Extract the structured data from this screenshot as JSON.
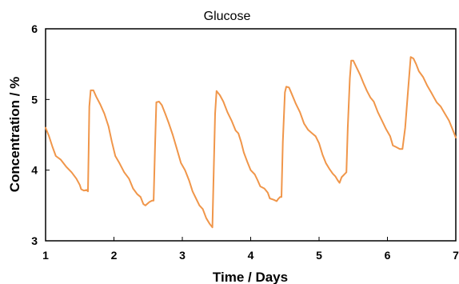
{
  "chart_data": {
    "type": "line",
    "title": "Glucose",
    "xlabel": "Time / Days",
    "ylabel": "Concentration / %",
    "xlim": [
      1,
      7
    ],
    "ylim": [
      3,
      6
    ],
    "xticks": [
      1,
      2,
      3,
      4,
      5,
      6,
      7
    ],
    "yticks": [
      3,
      4,
      5,
      6
    ],
    "grid": false,
    "series": [
      {
        "color": "#f0964a",
        "points": [
          [
            1.0,
            4.6
          ],
          [
            1.05,
            4.48
          ],
          [
            1.1,
            4.33
          ],
          [
            1.15,
            4.2
          ],
          [
            1.22,
            4.15
          ],
          [
            1.3,
            4.05
          ],
          [
            1.38,
            3.97
          ],
          [
            1.45,
            3.88
          ],
          [
            1.5,
            3.79
          ],
          [
            1.52,
            3.73
          ],
          [
            1.56,
            3.71
          ],
          [
            1.6,
            3.72
          ],
          [
            1.62,
            3.7
          ],
          [
            1.63,
            4.3
          ],
          [
            1.64,
            4.9
          ],
          [
            1.66,
            5.13
          ],
          [
            1.7,
            5.13
          ],
          [
            1.74,
            5.04
          ],
          [
            1.8,
            4.93
          ],
          [
            1.86,
            4.8
          ],
          [
            1.92,
            4.62
          ],
          [
            1.97,
            4.4
          ],
          [
            2.02,
            4.2
          ],
          [
            2.08,
            4.1
          ],
          [
            2.15,
            3.97
          ],
          [
            2.22,
            3.88
          ],
          [
            2.28,
            3.74
          ],
          [
            2.34,
            3.66
          ],
          [
            2.39,
            3.62
          ],
          [
            2.43,
            3.52
          ],
          [
            2.46,
            3.5
          ],
          [
            2.52,
            3.55
          ],
          [
            2.56,
            3.57
          ],
          [
            2.58,
            3.57
          ],
          [
            2.6,
            4.3
          ],
          [
            2.62,
            4.96
          ],
          [
            2.66,
            4.97
          ],
          [
            2.7,
            4.92
          ],
          [
            2.75,
            4.8
          ],
          [
            2.8,
            4.67
          ],
          [
            2.86,
            4.5
          ],
          [
            2.92,
            4.3
          ],
          [
            2.98,
            4.1
          ],
          [
            3.04,
            4.0
          ],
          [
            3.1,
            3.85
          ],
          [
            3.15,
            3.7
          ],
          [
            3.2,
            3.6
          ],
          [
            3.25,
            3.5
          ],
          [
            3.3,
            3.45
          ],
          [
            3.35,
            3.32
          ],
          [
            3.4,
            3.24
          ],
          [
            3.44,
            3.19
          ],
          [
            3.46,
            4.0
          ],
          [
            3.48,
            4.8
          ],
          [
            3.5,
            5.12
          ],
          [
            3.55,
            5.06
          ],
          [
            3.6,
            4.97
          ],
          [
            3.66,
            4.82
          ],
          [
            3.72,
            4.7
          ],
          [
            3.78,
            4.56
          ],
          [
            3.82,
            4.52
          ],
          [
            3.86,
            4.4
          ],
          [
            3.9,
            4.25
          ],
          [
            3.95,
            4.12
          ],
          [
            4.0,
            4.0
          ],
          [
            4.06,
            3.94
          ],
          [
            4.1,
            3.86
          ],
          [
            4.14,
            3.77
          ],
          [
            4.2,
            3.74
          ],
          [
            4.25,
            3.68
          ],
          [
            4.28,
            3.6
          ],
          [
            4.34,
            3.58
          ],
          [
            4.38,
            3.56
          ],
          [
            4.4,
            3.59
          ],
          [
            4.43,
            3.62
          ],
          [
            4.45,
            3.62
          ],
          [
            4.47,
            4.4
          ],
          [
            4.5,
            5.1
          ],
          [
            4.52,
            5.18
          ],
          [
            4.56,
            5.17
          ],
          [
            4.6,
            5.08
          ],
          [
            4.66,
            4.94
          ],
          [
            4.72,
            4.82
          ],
          [
            4.78,
            4.66
          ],
          [
            4.84,
            4.57
          ],
          [
            4.9,
            4.52
          ],
          [
            4.95,
            4.48
          ],
          [
            5.0,
            4.38
          ],
          [
            5.05,
            4.22
          ],
          [
            5.1,
            4.1
          ],
          [
            5.15,
            4.02
          ],
          [
            5.2,
            3.95
          ],
          [
            5.24,
            3.91
          ],
          [
            5.27,
            3.86
          ],
          [
            5.3,
            3.82
          ],
          [
            5.33,
            3.9
          ],
          [
            5.38,
            3.95
          ],
          [
            5.4,
            3.97
          ],
          [
            5.42,
            4.6
          ],
          [
            5.45,
            5.3
          ],
          [
            5.47,
            5.55
          ],
          [
            5.5,
            5.55
          ],
          [
            5.55,
            5.45
          ],
          [
            5.6,
            5.35
          ],
          [
            5.65,
            5.23
          ],
          [
            5.7,
            5.12
          ],
          [
            5.75,
            5.03
          ],
          [
            5.8,
            4.97
          ],
          [
            5.86,
            4.82
          ],
          [
            5.92,
            4.7
          ],
          [
            5.98,
            4.58
          ],
          [
            6.04,
            4.48
          ],
          [
            6.08,
            4.35
          ],
          [
            6.12,
            4.33
          ],
          [
            6.18,
            4.3
          ],
          [
            6.22,
            4.3
          ],
          [
            6.26,
            4.6
          ],
          [
            6.3,
            5.1
          ],
          [
            6.34,
            5.6
          ],
          [
            6.38,
            5.58
          ],
          [
            6.42,
            5.5
          ],
          [
            6.46,
            5.4
          ],
          [
            6.52,
            5.32
          ],
          [
            6.58,
            5.2
          ],
          [
            6.64,
            5.1
          ],
          [
            6.68,
            5.03
          ],
          [
            6.72,
            4.96
          ],
          [
            6.78,
            4.9
          ],
          [
            6.84,
            4.8
          ],
          [
            6.9,
            4.7
          ],
          [
            6.96,
            4.56
          ],
          [
            7.0,
            4.46
          ]
        ]
      }
    ]
  }
}
